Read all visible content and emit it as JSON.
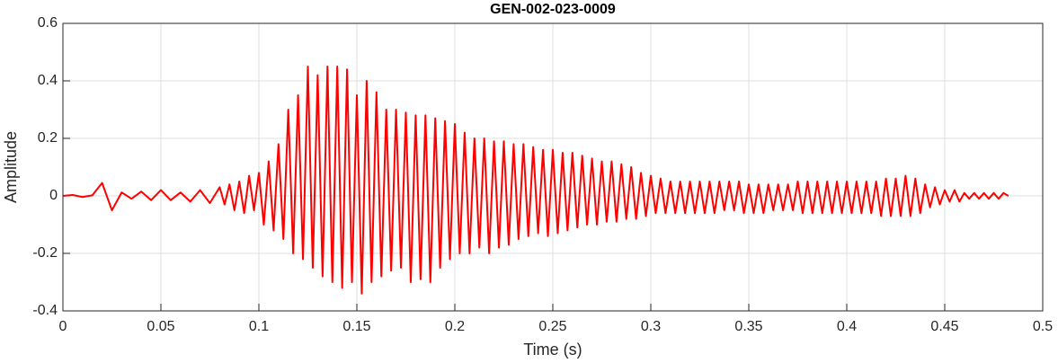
{
  "chart_data": {
    "type": "line",
    "title": "GEN-002-023-0009",
    "xlabel": "Time (s)",
    "ylabel": "Amplitude",
    "xlim": [
      0,
      0.5
    ],
    "ylim": [
      -0.4,
      0.6
    ],
    "xticks": [
      0,
      0.05,
      0.1,
      0.15,
      0.2,
      0.25,
      0.3,
      0.35,
      0.4,
      0.45,
      0.5
    ],
    "yticks": [
      -0.4,
      -0.2,
      0,
      0.2,
      0.4,
      0.6
    ],
    "grid": true,
    "series": [
      {
        "color": "#ff0000",
        "x": [
          0,
          0.005,
          0.01,
          0.015,
          0.02,
          0.025,
          0.03,
          0.035,
          0.04,
          0.045,
          0.05,
          0.055,
          0.06,
          0.065,
          0.07,
          0.075,
          0.08,
          0.0825,
          0.085,
          0.0875,
          0.09,
          0.0925,
          0.095,
          0.0975,
          0.1,
          0.1025,
          0.105,
          0.1075,
          0.11,
          0.1125,
          0.115,
          0.1175,
          0.12,
          0.1225,
          0.125,
          0.1275,
          0.13,
          0.1325,
          0.135,
          0.1375,
          0.14,
          0.1425,
          0.145,
          0.1475,
          0.15,
          0.1525,
          0.155,
          0.1575,
          0.16,
          0.1625,
          0.165,
          0.1675,
          0.17,
          0.1725,
          0.175,
          0.1775,
          0.18,
          0.1825,
          0.185,
          0.1875,
          0.19,
          0.1925,
          0.195,
          0.1975,
          0.2,
          0.2025,
          0.205,
          0.2075,
          0.21,
          0.2125,
          0.215,
          0.2175,
          0.22,
          0.2225,
          0.225,
          0.2275,
          0.23,
          0.2325,
          0.235,
          0.2375,
          0.24,
          0.2425,
          0.245,
          0.2475,
          0.25,
          0.2525,
          0.255,
          0.2575,
          0.26,
          0.2625,
          0.265,
          0.2675,
          0.27,
          0.2725,
          0.275,
          0.2775,
          0.28,
          0.2825,
          0.285,
          0.2875,
          0.29,
          0.2925,
          0.295,
          0.2975,
          0.3,
          0.3025,
          0.305,
          0.3075,
          0.31,
          0.3125,
          0.315,
          0.3175,
          0.32,
          0.3225,
          0.325,
          0.3275,
          0.33,
          0.3325,
          0.335,
          0.3375,
          0.34,
          0.3425,
          0.345,
          0.3475,
          0.35,
          0.3525,
          0.355,
          0.3575,
          0.36,
          0.3625,
          0.365,
          0.3675,
          0.37,
          0.3725,
          0.375,
          0.3775,
          0.38,
          0.3825,
          0.385,
          0.3875,
          0.39,
          0.3925,
          0.395,
          0.3975,
          0.4,
          0.4025,
          0.405,
          0.4075,
          0.41,
          0.4125,
          0.415,
          0.4175,
          0.42,
          0.4225,
          0.425,
          0.4275,
          0.43,
          0.4325,
          0.435,
          0.4375,
          0.44,
          0.4425,
          0.445,
          0.4475,
          0.45,
          0.4525,
          0.455,
          0.4575,
          0.46,
          0.4625,
          0.465,
          0.4675,
          0.47,
          0.4725,
          0.475,
          0.4775,
          0.48,
          0.4825
        ],
        "values": [
          0,
          0.003,
          -0.004,
          0.002,
          0.045,
          -0.05,
          0.012,
          -0.01,
          0.015,
          -0.015,
          0.02,
          -0.015,
          0.012,
          -0.02,
          0.02,
          -0.025,
          0.03,
          -0.03,
          0.04,
          -0.05,
          0.05,
          -0.06,
          0.07,
          -0.05,
          0.08,
          -0.1,
          0.12,
          -0.12,
          0.18,
          -0.15,
          0.3,
          -0.2,
          0.35,
          -0.22,
          0.45,
          -0.25,
          0.42,
          -0.28,
          0.45,
          -0.3,
          0.45,
          -0.32,
          0.44,
          -0.3,
          0.35,
          -0.34,
          0.4,
          -0.3,
          0.36,
          -0.28,
          0.3,
          -0.26,
          0.3,
          -0.25,
          0.29,
          -0.3,
          0.28,
          -0.29,
          0.28,
          -0.3,
          0.27,
          -0.25,
          0.26,
          -0.22,
          0.25,
          -0.2,
          0.22,
          -0.2,
          0.2,
          -0.18,
          0.2,
          -0.2,
          0.19,
          -0.18,
          0.19,
          -0.17,
          0.18,
          -0.15,
          0.18,
          -0.14,
          0.17,
          -0.13,
          0.16,
          -0.14,
          0.16,
          -0.13,
          0.15,
          -0.12,
          0.15,
          -0.11,
          0.14,
          -0.1,
          0.13,
          -0.1,
          0.12,
          -0.09,
          0.12,
          -0.09,
          0.11,
          -0.08,
          0.1,
          -0.08,
          0.08,
          -0.07,
          0.07,
          -0.06,
          0.06,
          -0.06,
          0.05,
          -0.06,
          0.05,
          -0.06,
          0.05,
          -0.06,
          0.05,
          -0.06,
          0.05,
          -0.06,
          0.05,
          -0.05,
          0.05,
          -0.05,
          0.05,
          -0.06,
          0.04,
          -0.06,
          0.04,
          -0.06,
          0.04,
          -0.05,
          0.04,
          -0.05,
          0.04,
          -0.05,
          0.05,
          -0.06,
          0.05,
          -0.06,
          0.05,
          -0.06,
          0.05,
          -0.06,
          0.05,
          -0.06,
          0.05,
          -0.06,
          0.05,
          -0.06,
          0.05,
          -0.06,
          0.05,
          -0.07,
          0.06,
          -0.07,
          0.06,
          -0.07,
          0.07,
          -0.07,
          0.06,
          -0.06,
          0.04,
          -0.04,
          0.03,
          -0.03,
          0.02,
          -0.02,
          0.02,
          -0.02,
          0.01,
          -0.01,
          0.01,
          -0.01,
          0.01,
          -0.01,
          0.01,
          -0.01,
          0.01,
          0
        ]
      }
    ]
  }
}
